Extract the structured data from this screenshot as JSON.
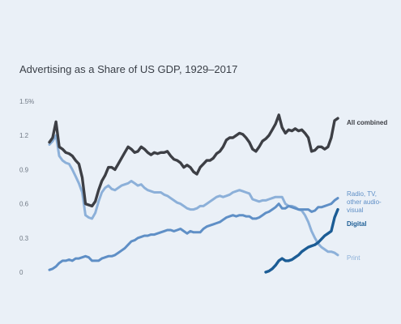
{
  "chart_data": {
    "type": "line",
    "title": "Advertising as a Share of US GDP, 1929–2017",
    "xlabel": "",
    "ylabel": "",
    "xlim": [
      1929,
      2017
    ],
    "ylim": [
      0,
      1.5
    ],
    "y_ticks": [
      {
        "value": 0,
        "label": "0"
      },
      {
        "value": 0.3,
        "label": "0.3"
      },
      {
        "value": 0.6,
        "label": "0.6"
      },
      {
        "value": 0.9,
        "label": "0.9"
      },
      {
        "value": 1.2,
        "label": "1.2"
      },
      {
        "value": 1.5,
        "label": "1.5%"
      }
    ],
    "grid": false,
    "legend": "inline labels at right end of lines",
    "series": [
      {
        "name": "All combined",
        "color": "#3d3f45",
        "x": [
          1929,
          1930,
          1931,
          1932,
          1933,
          1934,
          1935,
          1936,
          1937,
          1938,
          1939,
          1940,
          1941,
          1942,
          1943,
          1944,
          1945,
          1946,
          1947,
          1948,
          1949,
          1950,
          1951,
          1952,
          1953,
          1954,
          1955,
          1956,
          1957,
          1958,
          1959,
          1960,
          1961,
          1962,
          1963,
          1964,
          1965,
          1966,
          1967,
          1968,
          1969,
          1970,
          1971,
          1972,
          1973,
          1974,
          1975,
          1976,
          1977,
          1978,
          1979,
          1980,
          1981,
          1982,
          1983,
          1984,
          1985,
          1986,
          1987,
          1988,
          1989,
          1990,
          1991,
          1992,
          1993,
          1994,
          1995,
          1996,
          1997,
          1998,
          1999,
          2000,
          2001,
          2002,
          2003,
          2004,
          2005,
          2006,
          2007,
          2008,
          2009,
          2010,
          2011,
          2012,
          2013,
          2014,
          2015,
          2016,
          2017
        ],
        "values": [
          1.14,
          1.18,
          1.32,
          1.1,
          1.08,
          1.05,
          1.04,
          1.02,
          0.98,
          0.95,
          0.83,
          0.6,
          0.59,
          0.58,
          0.62,
          0.72,
          0.8,
          0.85,
          0.92,
          0.92,
          0.9,
          0.95,
          1.0,
          1.05,
          1.1,
          1.08,
          1.05,
          1.06,
          1.1,
          1.08,
          1.05,
          1.03,
          1.05,
          1.04,
          1.05,
          1.05,
          1.06,
          1.02,
          0.99,
          0.98,
          0.96,
          0.92,
          0.94,
          0.92,
          0.88,
          0.86,
          0.92,
          0.95,
          0.98,
          0.98,
          1.0,
          1.04,
          1.06,
          1.1,
          1.16,
          1.18,
          1.18,
          1.2,
          1.22,
          1.21,
          1.18,
          1.14,
          1.08,
          1.06,
          1.1,
          1.15,
          1.17,
          1.2,
          1.25,
          1.3,
          1.38,
          1.27,
          1.22,
          1.25,
          1.24,
          1.26,
          1.24,
          1.25,
          1.22,
          1.18,
          1.06,
          1.07,
          1.1,
          1.1,
          1.08,
          1.1,
          1.18,
          1.33,
          1.35
        ]
      },
      {
        "name": "Print",
        "color": "#8cb0d9",
        "x": [
          1929,
          1930,
          1931,
          1932,
          1933,
          1934,
          1935,
          1936,
          1937,
          1938,
          1939,
          1940,
          1941,
          1942,
          1943,
          1944,
          1945,
          1946,
          1947,
          1948,
          1949,
          1950,
          1951,
          1952,
          1953,
          1954,
          1955,
          1956,
          1957,
          1958,
          1959,
          1960,
          1961,
          1962,
          1963,
          1964,
          1965,
          1966,
          1967,
          1968,
          1969,
          1970,
          1971,
          1972,
          1973,
          1974,
          1975,
          1976,
          1977,
          1978,
          1979,
          1980,
          1981,
          1982,
          1983,
          1984,
          1985,
          1986,
          1987,
          1988,
          1989,
          1990,
          1991,
          1992,
          1993,
          1994,
          1995,
          1996,
          1997,
          1998,
          1999,
          2000,
          2001,
          2002,
          2003,
          2004,
          2005,
          2006,
          2007,
          2008,
          2009,
          2010,
          2011,
          2012,
          2013,
          2014,
          2015,
          2016,
          2017
        ],
        "values": [
          1.12,
          1.15,
          1.2,
          1.02,
          0.98,
          0.96,
          0.95,
          0.9,
          0.84,
          0.78,
          0.7,
          0.5,
          0.48,
          0.47,
          0.52,
          0.62,
          0.7,
          0.74,
          0.76,
          0.73,
          0.72,
          0.74,
          0.76,
          0.77,
          0.78,
          0.8,
          0.78,
          0.76,
          0.77,
          0.74,
          0.72,
          0.71,
          0.7,
          0.7,
          0.7,
          0.68,
          0.67,
          0.65,
          0.63,
          0.61,
          0.6,
          0.58,
          0.56,
          0.55,
          0.55,
          0.56,
          0.58,
          0.58,
          0.6,
          0.62,
          0.64,
          0.66,
          0.67,
          0.66,
          0.67,
          0.68,
          0.7,
          0.71,
          0.72,
          0.71,
          0.7,
          0.69,
          0.64,
          0.63,
          0.62,
          0.63,
          0.63,
          0.64,
          0.65,
          0.66,
          0.66,
          0.66,
          0.6,
          0.58,
          0.58,
          0.57,
          0.55,
          0.54,
          0.5,
          0.44,
          0.36,
          0.3,
          0.25,
          0.22,
          0.2,
          0.18,
          0.18,
          0.17,
          0.15
        ]
      },
      {
        "name": "Radio, TV, other audio-visual",
        "color": "#5f8fc6",
        "x": [
          1929,
          1930,
          1931,
          1932,
          1933,
          1934,
          1935,
          1936,
          1937,
          1938,
          1939,
          1940,
          1941,
          1942,
          1943,
          1944,
          1945,
          1946,
          1947,
          1948,
          1949,
          1950,
          1951,
          1952,
          1953,
          1954,
          1955,
          1956,
          1957,
          1958,
          1959,
          1960,
          1961,
          1962,
          1963,
          1964,
          1965,
          1966,
          1967,
          1968,
          1969,
          1970,
          1971,
          1972,
          1973,
          1974,
          1975,
          1976,
          1977,
          1978,
          1979,
          1980,
          1981,
          1982,
          1983,
          1984,
          1985,
          1986,
          1987,
          1988,
          1989,
          1990,
          1991,
          1992,
          1993,
          1994,
          1995,
          1996,
          1997,
          1998,
          1999,
          2000,
          2001,
          2002,
          2003,
          2004,
          2005,
          2006,
          2007,
          2008,
          2009,
          2010,
          2011,
          2012,
          2013,
          2014,
          2015,
          2016,
          2017
        ],
        "values": [
          0.02,
          0.03,
          0.05,
          0.08,
          0.1,
          0.1,
          0.11,
          0.1,
          0.12,
          0.12,
          0.13,
          0.14,
          0.13,
          0.1,
          0.1,
          0.1,
          0.12,
          0.13,
          0.14,
          0.14,
          0.15,
          0.17,
          0.19,
          0.21,
          0.24,
          0.27,
          0.28,
          0.3,
          0.31,
          0.32,
          0.32,
          0.33,
          0.33,
          0.34,
          0.35,
          0.36,
          0.37,
          0.37,
          0.36,
          0.37,
          0.38,
          0.36,
          0.34,
          0.36,
          0.35,
          0.35,
          0.35,
          0.38,
          0.4,
          0.41,
          0.42,
          0.43,
          0.44,
          0.46,
          0.48,
          0.49,
          0.5,
          0.49,
          0.5,
          0.5,
          0.49,
          0.49,
          0.47,
          0.47,
          0.48,
          0.5,
          0.52,
          0.53,
          0.55,
          0.57,
          0.6,
          0.56,
          0.56,
          0.58,
          0.57,
          0.56,
          0.55,
          0.55,
          0.55,
          0.55,
          0.53,
          0.54,
          0.57,
          0.57,
          0.58,
          0.59,
          0.6,
          0.63,
          0.65
        ]
      },
      {
        "name": "Digital",
        "color": "#1b5c95",
        "x": [
          1995,
          1996,
          1997,
          1998,
          1999,
          2000,
          2001,
          2002,
          2003,
          2004,
          2005,
          2006,
          2007,
          2008,
          2009,
          2010,
          2011,
          2012,
          2013,
          2014,
          2015,
          2016,
          2017
        ],
        "values": [
          0.0,
          0.01,
          0.03,
          0.06,
          0.1,
          0.12,
          0.1,
          0.1,
          0.11,
          0.13,
          0.15,
          0.18,
          0.2,
          0.22,
          0.23,
          0.24,
          0.26,
          0.29,
          0.32,
          0.34,
          0.36,
          0.48,
          0.55
        ]
      }
    ],
    "labels": {
      "all_combined": "All combined",
      "radio_line1": "Radio, TV,",
      "radio_line2": "other audio-",
      "radio_line3": "visual",
      "digital": "Digital",
      "print": "Print"
    }
  }
}
